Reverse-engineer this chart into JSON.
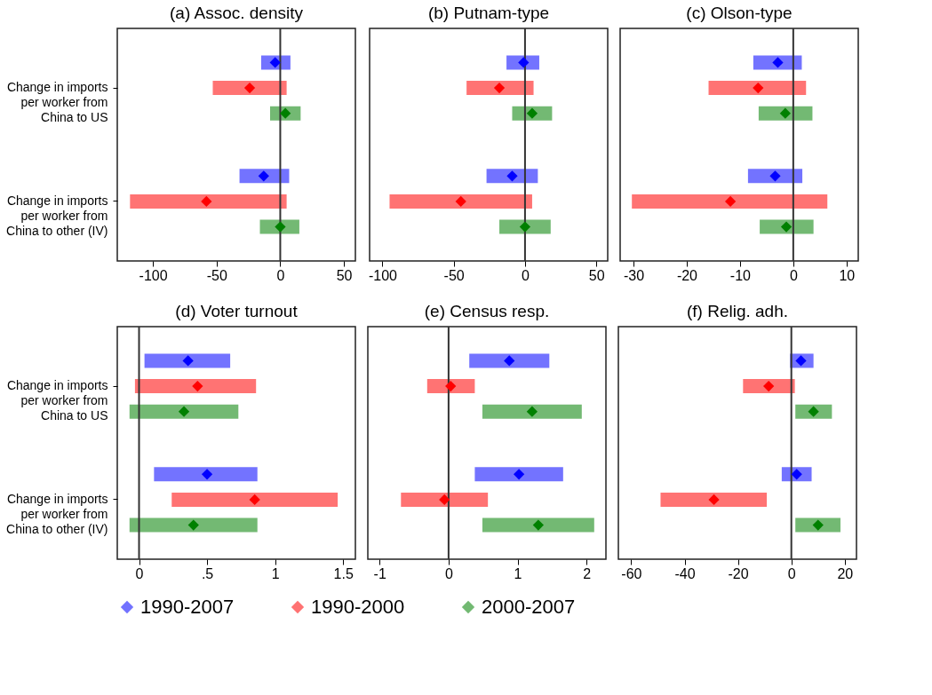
{
  "chart_data": [
    {
      "type": "scatter",
      "orientation": "horizontal",
      "title": "(a) Assoc. density",
      "categories": [
        "Change in imports per worker from China to US",
        "Change in imports per worker from China to other (IV)"
      ],
      "xlim": [
        -128,
        59
      ],
      "xticks": [
        -100,
        -50,
        0,
        50
      ],
      "legend": "bottom",
      "marker": "diamond",
      "ref_lines": [
        {
          "axis": "x",
          "value": 0,
          "color": "#333333"
        }
      ],
      "series": [
        {
          "name": "1990-2007",
          "color": "#0000ff",
          "values": [
            -4,
            -13
          ],
          "errors": [
            [
              -15,
              8
            ],
            [
              -32,
              7
            ]
          ]
        },
        {
          "name": "1990-2000",
          "color": "#ff0000",
          "values": [
            -24,
            -58
          ],
          "errors": [
            [
              -53,
              5
            ],
            [
              -118,
              5
            ]
          ]
        },
        {
          "name": "2000-2007",
          "color": "#008000",
          "values": [
            4,
            0
          ],
          "errors": [
            [
              -8,
              16
            ],
            [
              -16,
              15
            ]
          ]
        }
      ]
    },
    {
      "type": "scatter",
      "orientation": "horizontal",
      "title": "(b) Putnam-type",
      "categories": [
        "Change in imports per worker from China to US",
        "Change in imports per worker from China to other (IV)"
      ],
      "xlim": [
        -109,
        58
      ],
      "xticks": [
        -100,
        -50,
        0,
        50
      ],
      "tick_labels": "x",
      "legend": "bottom",
      "marker": "diamond",
      "ref_lines": [
        {
          "axis": "x",
          "value": 0,
          "color": "#333333"
        }
      ],
      "series": [
        {
          "name": "1990-2007",
          "color": "#0000ff",
          "values": [
            -1,
            -9
          ],
          "errors": [
            [
              -13,
              10
            ],
            [
              -27,
              9
            ]
          ]
        },
        {
          "name": "1990-2000",
          "color": "#ff0000",
          "values": [
            -18,
            -45
          ],
          "errors": [
            [
              -41,
              6
            ],
            [
              -95,
              5
            ]
          ]
        },
        {
          "name": "2000-2007",
          "color": "#008000",
          "values": [
            5,
            0
          ],
          "errors": [
            [
              -9,
              19
            ],
            [
              -18,
              18
            ]
          ]
        }
      ]
    },
    {
      "type": "scatter",
      "orientation": "horizontal",
      "title": "(c) Olson-type",
      "categories": [
        "Change in imports per worker from China to US",
        "Change in imports per worker from China to other (IV)"
      ],
      "xlim": [
        -32.5,
        12.2
      ],
      "xticks": [
        -30,
        -20,
        -10,
        0,
        10
      ],
      "tick_labels": "x",
      "legend": "bottom",
      "marker": "diamond",
      "ref_lines": [
        {
          "axis": "x",
          "value": 0,
          "color": "#333333"
        }
      ],
      "series": [
        {
          "name": "1990-2007",
          "color": "#0000ff",
          "values": [
            -2.9,
            -3.4
          ],
          "errors": [
            [
              -7.5,
              1.6
            ],
            [
              -8.5,
              1.7
            ]
          ]
        },
        {
          "name": "1990-2000",
          "color": "#ff0000",
          "values": [
            -6.6,
            -11.8
          ],
          "errors": [
            [
              -15.9,
              2.4
            ],
            [
              -30.3,
              6.4
            ]
          ]
        },
        {
          "name": "2000-2007",
          "color": "#008000",
          "values": [
            -1.5,
            -1.3
          ],
          "errors": [
            [
              -6.5,
              3.6
            ],
            [
              -6.3,
              3.8
            ]
          ]
        }
      ]
    },
    {
      "type": "scatter",
      "orientation": "horizontal",
      "title": "(d) Voter turnout",
      "categories": [
        "Change in imports per worker from China to US",
        "Change in imports per worker from China to other (IV)"
      ],
      "xlim": [
        -0.16,
        1.59
      ],
      "xticks": [
        0,
        {
          "value": 0.5,
          "label": ".5"
        },
        1,
        1.5
      ],
      "legend": "bottom",
      "marker": "diamond",
      "ref_lines": [
        {
          "axis": "x",
          "value": 0,
          "color": "#333333"
        }
      ],
      "series": [
        {
          "name": "1990-2007",
          "color": "#0000ff",
          "values": [
            0.36,
            0.5
          ],
          "errors": [
            [
              0.04,
              0.67
            ],
            [
              0.11,
              0.87
            ]
          ]
        },
        {
          "name": "1990-2000",
          "color": "#ff0000",
          "values": [
            0.43,
            0.85
          ],
          "errors": [
            [
              -0.03,
              0.86
            ],
            [
              0.24,
              1.46
            ]
          ]
        },
        {
          "name": "2000-2007",
          "color": "#008000",
          "values": [
            0.33,
            0.4
          ],
          "errors": [
            [
              -0.07,
              0.73
            ],
            [
              -0.07,
              0.87
            ]
          ]
        }
      ]
    },
    {
      "type": "scatter",
      "orientation": "horizontal",
      "title": "(e) Census resp.",
      "categories": [
        "Change in imports per worker from China to US",
        "Change in imports per worker from China to other (IV)"
      ],
      "xlim": [
        -1.17,
        2.28
      ],
      "xticks": [
        -1,
        0,
        1,
        2
      ],
      "tick_labels": "x",
      "legend": "bottom",
      "marker": "diamond",
      "ref_lines": [
        {
          "axis": "x",
          "value": 0,
          "color": "#333333"
        }
      ],
      "series": [
        {
          "name": "1990-2007",
          "color": "#0000ff",
          "values": [
            0.88,
            1.02
          ],
          "errors": [
            [
              0.3,
              1.46
            ],
            [
              0.38,
              1.66
            ]
          ]
        },
        {
          "name": "1990-2000",
          "color": "#ff0000",
          "values": [
            0.03,
            -0.06
          ],
          "errors": [
            [
              -0.31,
              0.38
            ],
            [
              -0.69,
              0.57
            ]
          ]
        },
        {
          "name": "2000-2007",
          "color": "#008000",
          "values": [
            1.21,
            1.3
          ],
          "errors": [
            [
              0.49,
              1.93
            ],
            [
              0.49,
              2.11
            ]
          ]
        }
      ]
    },
    {
      "type": "scatter",
      "orientation": "horizontal",
      "title": "(f) Relig. adh.",
      "categories": [
        "Change in imports per worker from China to US",
        "Change in imports per worker from China to other (IV)"
      ],
      "xlim": [
        -64.8,
        24.4
      ],
      "xticks": [
        -60,
        -40,
        -20,
        0,
        20
      ],
      "tick_labels": "x",
      "legend": "bottom",
      "marker": "diamond",
      "ref_lines": [
        {
          "axis": "x",
          "value": 0,
          "color": "#333333"
        }
      ],
      "series": [
        {
          "name": "1990-2007",
          "color": "#0000ff",
          "values": [
            3.6,
            2
          ],
          "errors": [
            [
              -0.5,
              8.3
            ],
            [
              -3.6,
              7.6
            ]
          ]
        },
        {
          "name": "1990-2000",
          "color": "#ff0000",
          "values": [
            -8.5,
            -29
          ],
          "errors": [
            [
              -18.1,
              1.3
            ],
            [
              -49,
              -9.2
            ]
          ]
        },
        {
          "name": "2000-2007",
          "color": "#008000",
          "values": [
            8.3,
            10
          ],
          "errors": [
            [
              1.5,
              15.2
            ],
            [
              1.5,
              18.4
            ]
          ]
        }
      ]
    }
  ]
}
